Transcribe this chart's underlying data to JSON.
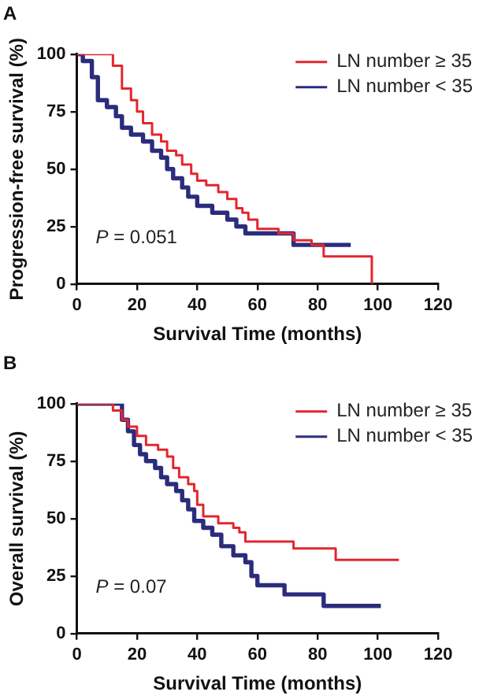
{
  "chart_data": [
    {
      "type": "step",
      "title": "A",
      "xlabel": "Survival Time (months)",
      "ylabel": "Progression-free survival (%)",
      "xlim": [
        0,
        120
      ],
      "xticks": [
        0,
        20,
        40,
        60,
        80,
        100,
        120
      ],
      "ylim": [
        0,
        100
      ],
      "yticks": [
        0,
        25,
        50,
        75,
        100
      ],
      "grid": false,
      "legend": "top right",
      "annotations": [
        "P = 0.051"
      ],
      "series": [
        {
          "name": "LN number ≥ 35",
          "color": "#e3262e",
          "x": [
            0,
            8,
            12,
            15,
            18,
            20,
            22,
            25,
            28,
            30,
            33,
            35,
            38,
            40,
            43,
            47,
            50,
            53,
            55,
            57,
            60,
            67,
            72,
            78,
            82,
            98,
            98
          ],
          "values": [
            100,
            100,
            95,
            85,
            80,
            75,
            70,
            65,
            62,
            58,
            56,
            52,
            48,
            45,
            43,
            40,
            37,
            33,
            31,
            28,
            24,
            22,
            19,
            17,
            12,
            12,
            0
          ]
        },
        {
          "name": "LN number < 35",
          "color": "#2b2c7c",
          "x": [
            0,
            2,
            5,
            7,
            10,
            13,
            15,
            18,
            22,
            25,
            28,
            30,
            32,
            35,
            37,
            40,
            45,
            50,
            53,
            56,
            70,
            72,
            91
          ],
          "values": [
            100,
            97,
            90,
            80,
            77,
            73,
            68,
            65,
            62,
            58,
            55,
            50,
            46,
            42,
            38,
            34,
            31,
            28,
            25,
            22,
            22,
            17,
            17
          ]
        }
      ]
    },
    {
      "type": "step",
      "title": "B",
      "xlabel": "Survival Time (months)",
      "ylabel": "Overall survival (%)",
      "xlim": [
        0,
        120
      ],
      "xticks": [
        0,
        20,
        40,
        60,
        80,
        100,
        120
      ],
      "ylim": [
        0,
        100
      ],
      "yticks": [
        0,
        25,
        50,
        75,
        100
      ],
      "grid": false,
      "legend": "top right",
      "annotations": [
        "P = 0.07"
      ],
      "series": [
        {
          "name": "LN number ≥ 35",
          "color": "#e3262e",
          "x": [
            0,
            10,
            12,
            15,
            17,
            20,
            23,
            27,
            30,
            32,
            34,
            37,
            39,
            40,
            42,
            47,
            52,
            54,
            56,
            72,
            86,
            107
          ],
          "values": [
            100,
            100,
            97,
            93,
            90,
            86,
            82,
            80,
            77,
            72,
            68,
            65,
            62,
            56,
            51,
            48,
            46,
            44,
            40,
            37,
            32,
            32
          ]
        },
        {
          "name": "LN number < 35",
          "color": "#2b2c7c",
          "x": [
            0,
            13,
            15,
            17,
            19,
            21,
            23,
            26,
            28,
            30,
            33,
            35,
            37,
            39,
            42,
            45,
            48,
            52,
            56,
            58,
            60,
            69,
            82,
            101
          ],
          "values": [
            100,
            100,
            93,
            88,
            82,
            78,
            75,
            72,
            68,
            65,
            62,
            58,
            54,
            49,
            46,
            43,
            38,
            34,
            31,
            25,
            21,
            17,
            12,
            12
          ]
        }
      ]
    }
  ]
}
